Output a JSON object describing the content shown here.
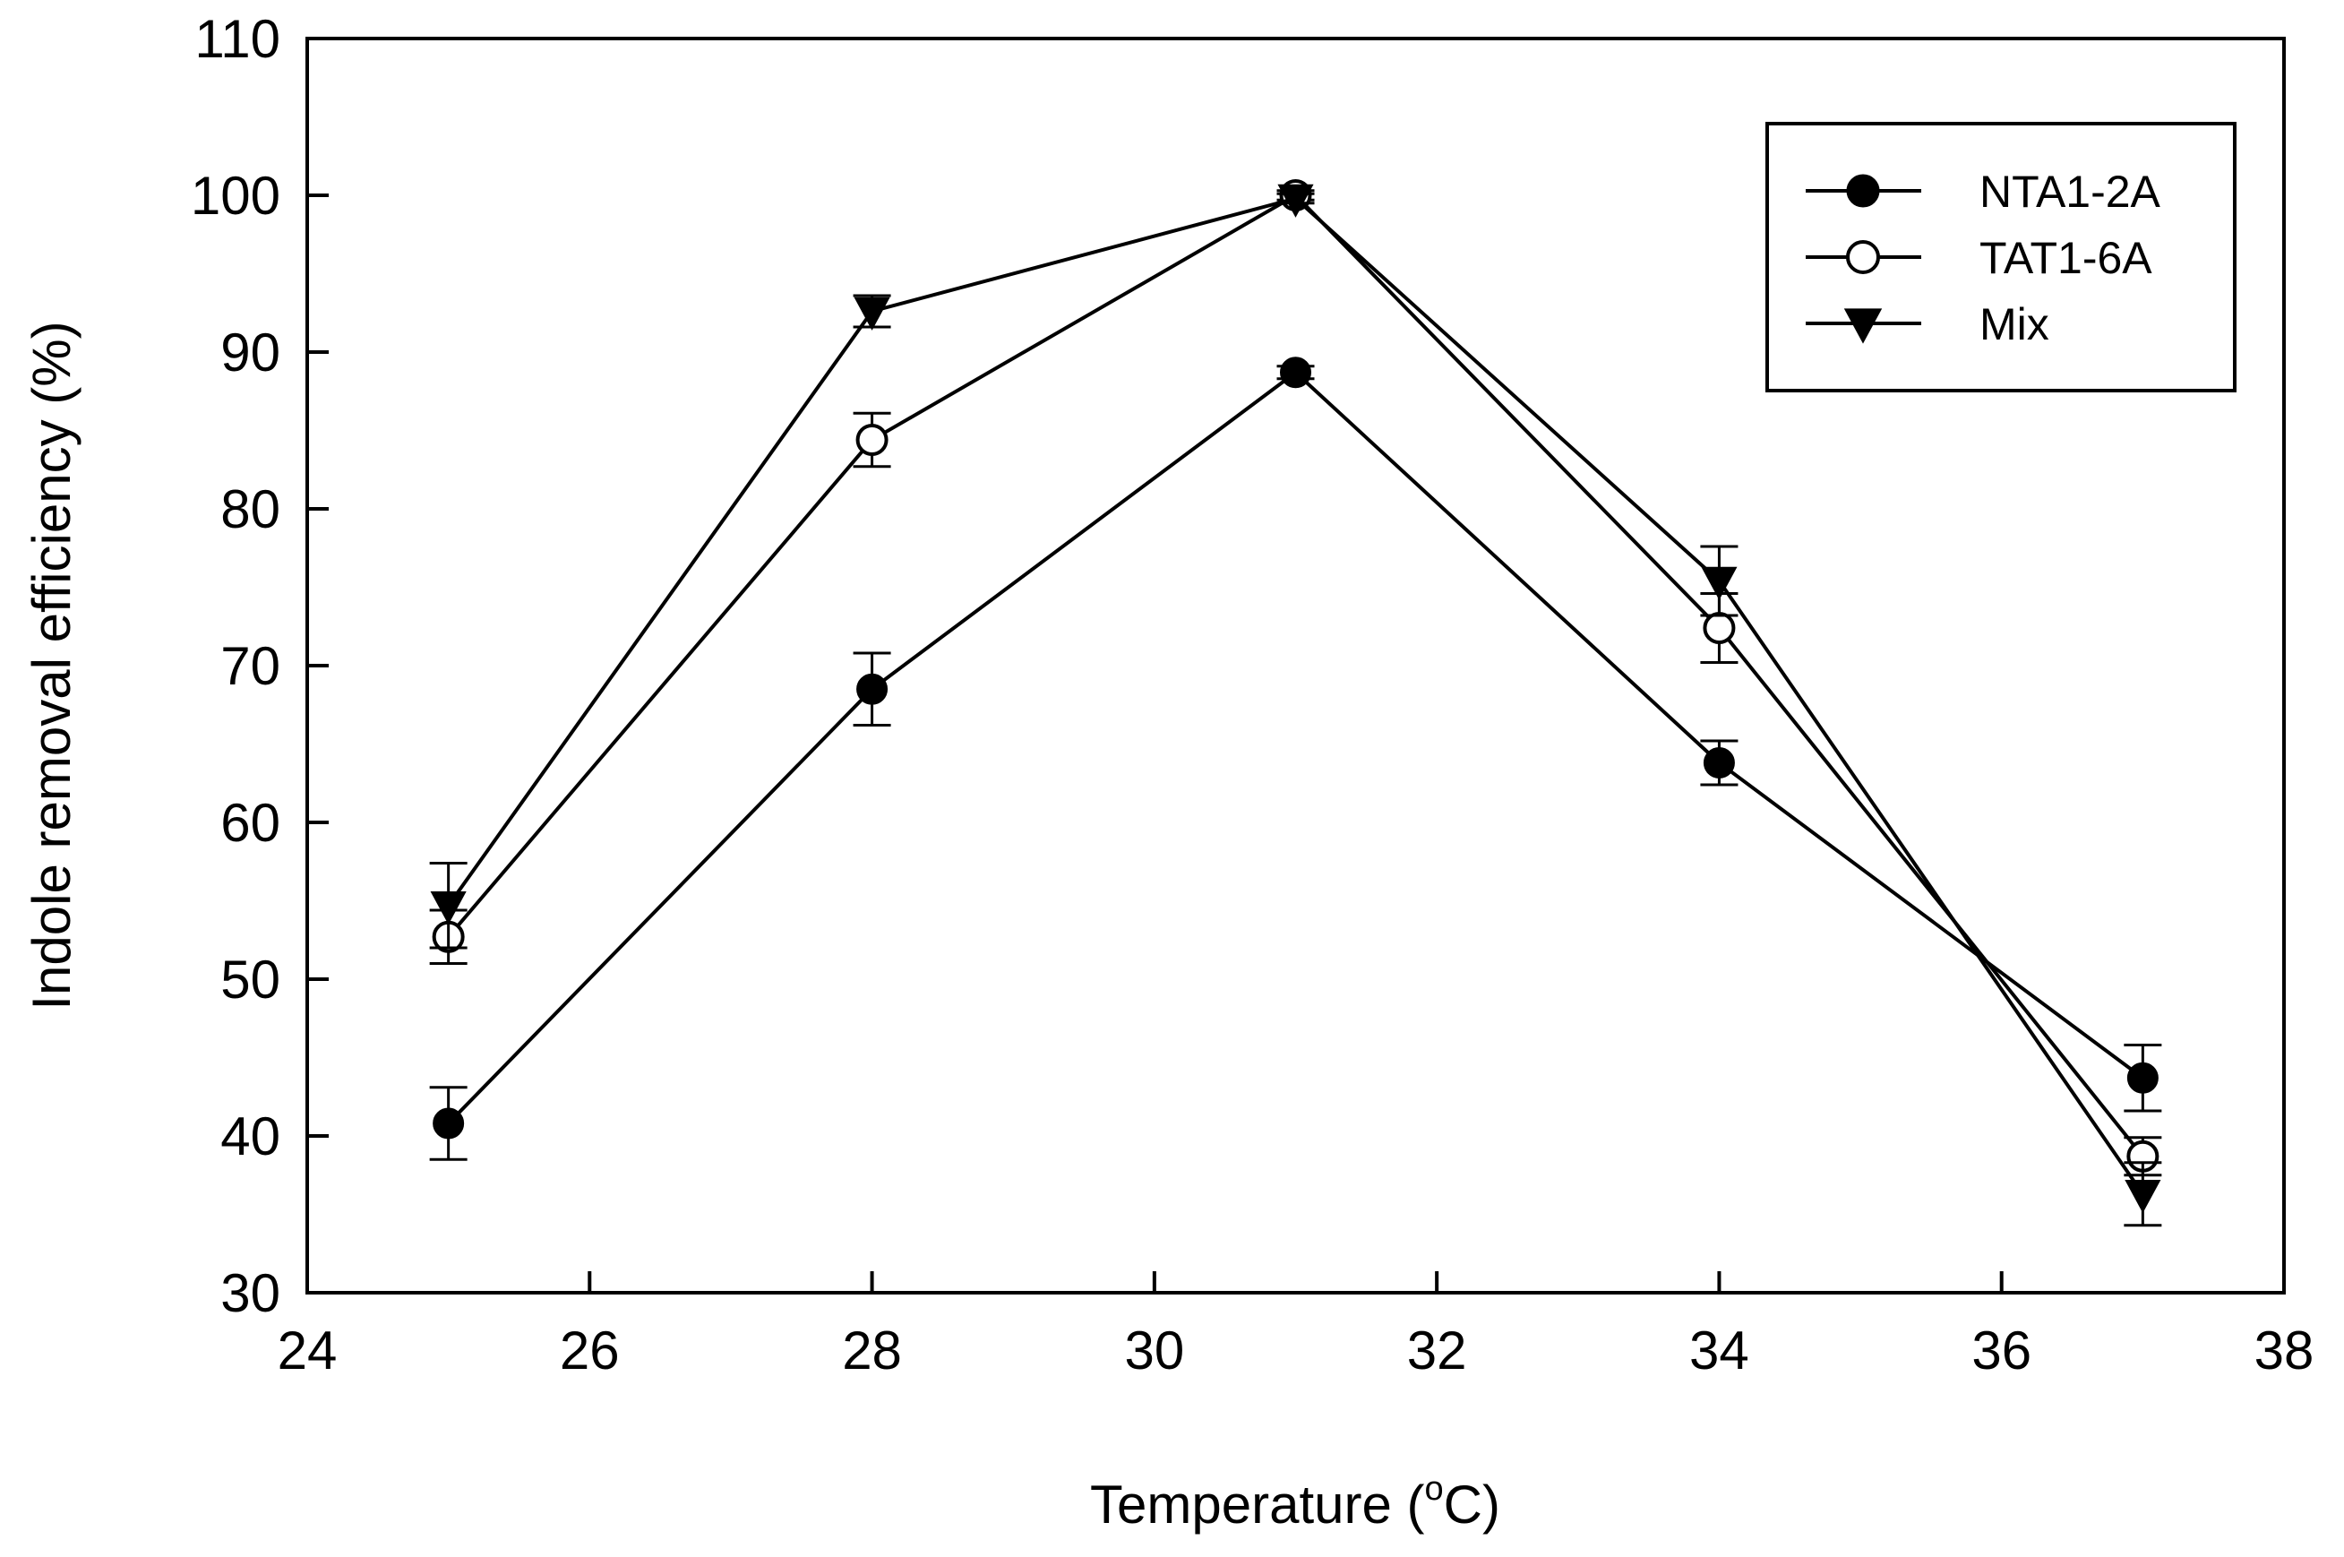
{
  "chart_data": {
    "type": "line",
    "title": "",
    "xlabel": "Temperature (",
    "xlabel_sup": "o",
    "xlabel_unit": "C)",
    "ylabel": "Indole removal efficiency (%)",
    "xlim": [
      24,
      38
    ],
    "ylim": [
      30,
      110
    ],
    "xticks": [
      24,
      26,
      28,
      30,
      32,
      34,
      36,
      38
    ],
    "yticks": [
      30,
      40,
      50,
      60,
      70,
      80,
      90,
      100,
      110
    ],
    "x": [
      25,
      28,
      31,
      34,
      37
    ],
    "legend_position": "top-right",
    "series": [
      {
        "name": "NTA1-2A",
        "marker": "filled-circle",
        "values": [
          40.8,
          68.5,
          88.7,
          63.8,
          43.7
        ],
        "errors": [
          2.3,
          2.3,
          0.4,
          1.4,
          2.1
        ]
      },
      {
        "name": "TAT1-6A",
        "marker": "open-circle",
        "values": [
          52.7,
          84.4,
          100.0,
          72.4,
          38.7
        ],
        "errors": [
          1.7,
          1.7,
          0.3,
          2.2,
          1.2
        ]
      },
      {
        "name": "Mix",
        "marker": "filled-triangle-down",
        "values": [
          54.7,
          92.6,
          99.8,
          75.4,
          36.3
        ],
        "errors": [
          2.7,
          1.0,
          0.3,
          2.2,
          2.0
        ]
      }
    ]
  }
}
